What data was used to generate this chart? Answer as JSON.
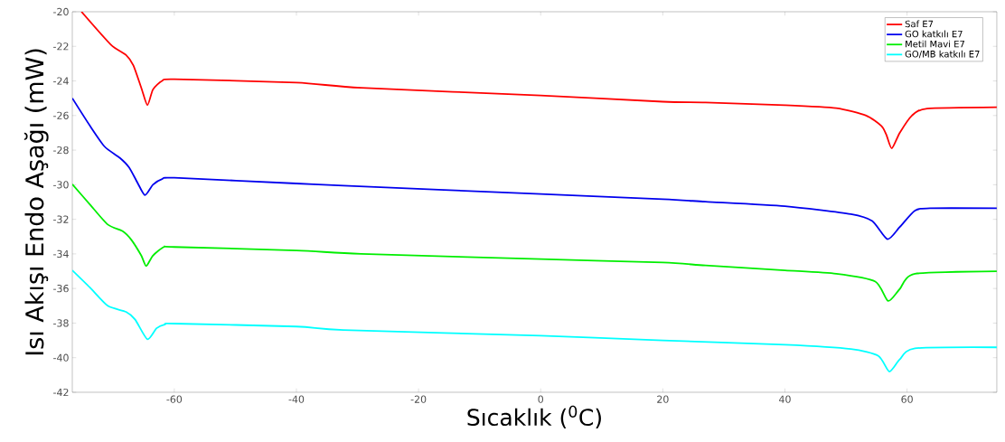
{
  "chart_data": {
    "type": "line",
    "xlabel": "Sıcaklık ($^{0}$C)",
    "ylabel": "Isı Akışı Endo Aşağı (mW)",
    "xlim": [
      -76.7,
      74.7
    ],
    "ylim": [
      -42,
      -20
    ],
    "xticks": [
      -60,
      -40,
      -20,
      0,
      20,
      40,
      60
    ],
    "yticks": [
      -42,
      -40,
      -38,
      -36,
      -34,
      -32,
      -30,
      -28,
      -26,
      -24,
      -22,
      -20
    ],
    "grid": false,
    "legend": "top right",
    "marker": "none",
    "line_style": "solid",
    "series": [
      {
        "name": "Saf E7",
        "color": "#ff0000",
        "x": [
          -75.2,
          -70.4,
          -67.9,
          -66.7,
          -65.4,
          -64.4,
          -63.5,
          -62,
          -60,
          -40,
          -29.4,
          0,
          20,
          27,
          40,
          48.4,
          53.3,
          55.8,
          56.6,
          57.5,
          58.8,
          60.8,
          63.3,
          74.7
        ],
        "values": [
          -20,
          -21.9,
          -22.5,
          -23.1,
          -24.4,
          -25.4,
          -24.5,
          -24.0,
          -23.9,
          -24.1,
          -24.4,
          -24.84,
          -25.2,
          -25.25,
          -25.4,
          -25.57,
          -26.0,
          -26.6,
          -27.1,
          -27.9,
          -27.0,
          -26.0,
          -25.6,
          -25.52
        ]
      },
      {
        "name": "GO katkılı E7",
        "color": "#0000ee",
        "x": [
          -76.7,
          -73.8,
          -71.4,
          -68.9,
          -67.4,
          -66,
          -64.8,
          -63.5,
          -62,
          -60,
          -40,
          -32.3,
          0,
          20,
          27,
          40,
          50.8,
          54.3,
          56.8,
          58.8,
          61.3,
          63.8,
          74.7
        ],
        "values": [
          -25.0,
          -26.6,
          -27.8,
          -28.45,
          -29.0,
          -29.9,
          -30.6,
          -30.0,
          -29.67,
          -29.6,
          -29.93,
          -30.05,
          -30.54,
          -30.84,
          -30.98,
          -31.24,
          -31.7,
          -32.1,
          -33.15,
          -32.45,
          -31.5,
          -31.36,
          -31.36
        ]
      },
      {
        "name": "Metil Mavi E7",
        "color": "#00ee00",
        "x": [
          -76.7,
          -73.8,
          -70.9,
          -68.4,
          -67,
          -65.4,
          -64.6,
          -63.5,
          -61.7,
          -60,
          -40,
          -29.4,
          0,
          20,
          27,
          40,
          48.4,
          54.8,
          56.9,
          58.8,
          61.3,
          74.7
        ],
        "values": [
          -29.97,
          -31.15,
          -32.3,
          -32.7,
          -33.2,
          -34.1,
          -34.7,
          -34.1,
          -33.6,
          -33.6,
          -33.8,
          -34.0,
          -34.3,
          -34.5,
          -34.67,
          -34.95,
          -35.15,
          -35.6,
          -36.72,
          -36.03,
          -35.15,
          -35.0
        ]
      },
      {
        "name": "GO/MB katkılı E7",
        "color": "#00ffff",
        "x": [
          -76.7,
          -73.8,
          -70.9,
          -67.9,
          -66.4,
          -64.4,
          -62.9,
          -61.5,
          -60,
          -40,
          -32.3,
          0,
          20,
          40,
          50.8,
          55.3,
          57.1,
          58.8,
          61.3,
          74.7
        ],
        "values": [
          -34.95,
          -35.95,
          -37.0,
          -37.35,
          -37.8,
          -38.94,
          -38.3,
          -38.07,
          -38.03,
          -38.2,
          -38.4,
          -38.73,
          -39.0,
          -39.25,
          -39.5,
          -39.9,
          -40.8,
          -40.1,
          -39.46,
          -39.4
        ]
      }
    ]
  }
}
